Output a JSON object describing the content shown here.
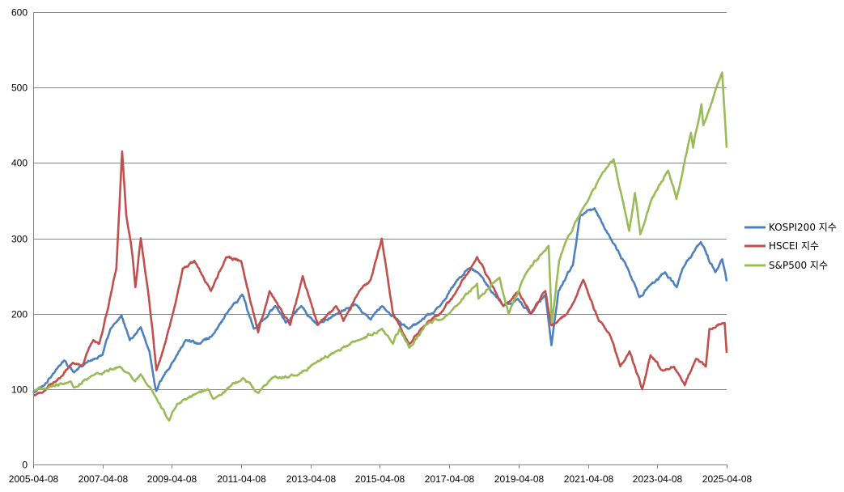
{
  "chart_data": {
    "type": "line",
    "title": "",
    "xlabel": "",
    "ylabel": "",
    "ylim": [
      0,
      600
    ],
    "yticks": [
      0,
      100,
      200,
      300,
      400,
      500,
      600
    ],
    "xlim": [
      "2005-04-08",
      "2025-04-08"
    ],
    "xticks": [
      "2005-04-08",
      "2007-04-08",
      "2009-04-08",
      "2011-04-08",
      "2013-04-08",
      "2015-04-08",
      "2017-04-08",
      "2019-04-08",
      "2021-04-08",
      "2023-04-08",
      "2025-04-08"
    ],
    "grid": "horizontal",
    "legend_position": "right",
    "series": [
      {
        "name": "KOSPI200 지수",
        "color": "#4f81bd",
        "points": [
          [
            "2005-04-08",
            95
          ],
          [
            "2005-08-01",
            105
          ],
          [
            "2005-12-01",
            125
          ],
          [
            "2006-03-01",
            138
          ],
          [
            "2006-06-15",
            122
          ],
          [
            "2006-10-01",
            133
          ],
          [
            "2007-01-01",
            140
          ],
          [
            "2007-04-08",
            145
          ],
          [
            "2007-07-01",
            180
          ],
          [
            "2007-10-25",
            198
          ],
          [
            "2008-01-20",
            165
          ],
          [
            "2008-05-15",
            182
          ],
          [
            "2008-08-15",
            150
          ],
          [
            "2008-10-25",
            98
          ],
          [
            "2009-01-01",
            115
          ],
          [
            "2009-04-08",
            135
          ],
          [
            "2009-09-01",
            165
          ],
          [
            "2010-02-01",
            160
          ],
          [
            "2010-06-01",
            170
          ],
          [
            "2010-12-01",
            205
          ],
          [
            "2011-04-20",
            225
          ],
          [
            "2011-08-20",
            180
          ],
          [
            "2012-01-01",
            195
          ],
          [
            "2012-04-01",
            210
          ],
          [
            "2012-07-20",
            188
          ],
          [
            "2013-01-01",
            210
          ],
          [
            "2013-06-20",
            185
          ],
          [
            "2014-01-01",
            200
          ],
          [
            "2014-07-20",
            212
          ],
          [
            "2015-01-01",
            192
          ],
          [
            "2015-05-01",
            210
          ],
          [
            "2016-02-01",
            180
          ],
          [
            "2016-06-01",
            190
          ],
          [
            "2017-01-01",
            210
          ],
          [
            "2017-07-01",
            245
          ],
          [
            "2017-11-01",
            260
          ],
          [
            "2018-02-01",
            255
          ],
          [
            "2018-10-30",
            210
          ],
          [
            "2019-04-01",
            220
          ],
          [
            "2019-08-15",
            200
          ],
          [
            "2020-01-15",
            225
          ],
          [
            "2020-03-19",
            158
          ],
          [
            "2020-06-01",
            230
          ],
          [
            "2020-11-01",
            265
          ],
          [
            "2021-01-15",
            330
          ],
          [
            "2021-06-15",
            340
          ],
          [
            "2021-12-01",
            300
          ],
          [
            "2022-06-01",
            260
          ],
          [
            "2022-09-30",
            222
          ],
          [
            "2023-01-01",
            235
          ],
          [
            "2023-07-01",
            255
          ],
          [
            "2023-10-30",
            235
          ],
          [
            "2024-01-01",
            260
          ],
          [
            "2024-07-10",
            295
          ],
          [
            "2024-12-10",
            255
          ],
          [
            "2025-02-20",
            272
          ],
          [
            "2025-04-08",
            243
          ]
        ]
      },
      {
        "name": "HSCEI 지수",
        "color": "#c0504d",
        "points": [
          [
            "2005-04-08",
            92
          ],
          [
            "2005-08-01",
            98
          ],
          [
            "2005-12-01",
            110
          ],
          [
            "2006-06-01",
            135
          ],
          [
            "2006-09-01",
            130
          ],
          [
            "2007-01-01",
            165
          ],
          [
            "2007-03-05",
            160
          ],
          [
            "2007-06-01",
            205
          ],
          [
            "2007-09-01",
            260
          ],
          [
            "2007-11-01",
            415
          ],
          [
            "2007-12-15",
            330
          ],
          [
            "2008-02-15",
            280
          ],
          [
            "2008-03-20",
            235
          ],
          [
            "2008-05-15",
            300
          ],
          [
            "2008-07-20",
            240
          ],
          [
            "2008-09-15",
            180
          ],
          [
            "2008-10-27",
            125
          ],
          [
            "2009-01-01",
            150
          ],
          [
            "2009-04-08",
            195
          ],
          [
            "2009-08-01",
            260
          ],
          [
            "2009-12-01",
            270
          ],
          [
            "2010-05-25",
            230
          ],
          [
            "2010-11-01",
            275
          ],
          [
            "2011-04-08",
            270
          ],
          [
            "2011-10-04",
            175
          ],
          [
            "2012-02-01",
            230
          ],
          [
            "2012-09-05",
            185
          ],
          [
            "2013-01-15",
            250
          ],
          [
            "2013-06-25",
            185
          ],
          [
            "2014-01-01",
            210
          ],
          [
            "2014-03-20",
            190
          ],
          [
            "2014-09-01",
            230
          ],
          [
            "2015-01-01",
            245
          ],
          [
            "2015-04-28",
            300
          ],
          [
            "2015-08-24",
            200
          ],
          [
            "2016-02-12",
            160
          ],
          [
            "2016-09-01",
            190
          ],
          [
            "2017-01-01",
            200
          ],
          [
            "2017-06-01",
            225
          ],
          [
            "2018-01-26",
            275
          ],
          [
            "2018-10-30",
            210
          ],
          [
            "2019-04-08",
            230
          ],
          [
            "2019-08-15",
            200
          ],
          [
            "2020-01-15",
            230
          ],
          [
            "2020-03-19",
            185
          ],
          [
            "2020-09-01",
            200
          ],
          [
            "2021-02-17",
            245
          ],
          [
            "2021-08-01",
            190
          ],
          [
            "2021-12-01",
            170
          ],
          [
            "2022-03-15",
            130
          ],
          [
            "2022-06-20",
            150
          ],
          [
            "2022-10-31",
            100
          ],
          [
            "2023-01-27",
            145
          ],
          [
            "2023-06-01",
            125
          ],
          [
            "2023-10-01",
            130
          ],
          [
            "2024-01-22",
            105
          ],
          [
            "2024-05-20",
            140
          ],
          [
            "2024-09-01",
            130
          ],
          [
            "2024-10-08",
            180
          ],
          [
            "2025-03-18",
            188
          ],
          [
            "2025-04-08",
            148
          ]
        ]
      },
      {
        "name": "S&P500 지수",
        "color": "#9bbb59",
        "points": [
          [
            "2005-04-08",
            98
          ],
          [
            "2006-05-01",
            110
          ],
          [
            "2006-06-15",
            102
          ],
          [
            "2007-01-01",
            118
          ],
          [
            "2007-10-09",
            130
          ],
          [
            "2008-03-15",
            110
          ],
          [
            "2008-05-15",
            120
          ],
          [
            "2008-09-01",
            100
          ],
          [
            "2009-03-09",
            58
          ],
          [
            "2009-06-01",
            80
          ],
          [
            "2010-01-01",
            95
          ],
          [
            "2010-04-23",
            100
          ],
          [
            "2010-07-02",
            88
          ],
          [
            "2011-04-29",
            115
          ],
          [
            "2011-10-03",
            95
          ],
          [
            "2012-03-01",
            115
          ],
          [
            "2012-11-15",
            118
          ],
          [
            "2013-06-01",
            135
          ],
          [
            "2014-01-01",
            150
          ],
          [
            "2014-09-01",
            165
          ],
          [
            "2015-05-01",
            180
          ],
          [
            "2015-08-25",
            160
          ],
          [
            "2015-11-01",
            180
          ],
          [
            "2016-02-11",
            155
          ],
          [
            "2016-08-01",
            185
          ],
          [
            "2017-04-08",
            200
          ],
          [
            "2018-01-26",
            240
          ],
          [
            "2018-02-09",
            220
          ],
          [
            "2018-09-20",
            248
          ],
          [
            "2018-12-24",
            200
          ],
          [
            "2019-07-01",
            255
          ],
          [
            "2020-02-19",
            290
          ],
          [
            "2020-03-23",
            188
          ],
          [
            "2020-06-08",
            270
          ],
          [
            "2020-09-01",
            300
          ],
          [
            "2021-04-08",
            350
          ],
          [
            "2021-09-01",
            385
          ],
          [
            "2022-01-03",
            405
          ],
          [
            "2022-06-16",
            310
          ],
          [
            "2022-08-16",
            360
          ],
          [
            "2022-10-12",
            305
          ],
          [
            "2023-02-01",
            350
          ],
          [
            "2023-07-31",
            390
          ],
          [
            "2023-10-27",
            352
          ],
          [
            "2024-03-28",
            440
          ],
          [
            "2024-04-19",
            420
          ],
          [
            "2024-07-16",
            478
          ],
          [
            "2024-08-05",
            450
          ],
          [
            "2025-02-19",
            520
          ],
          [
            "2025-03-13",
            475
          ],
          [
            "2025-04-08",
            420
          ]
        ]
      }
    ]
  }
}
